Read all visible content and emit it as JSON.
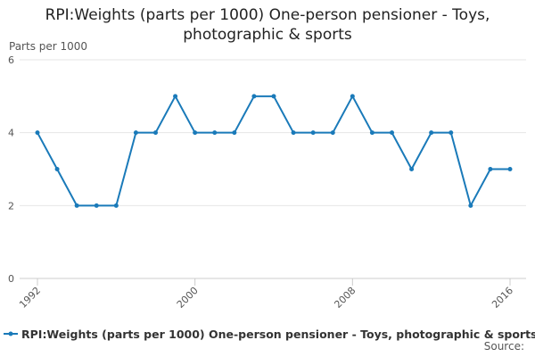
{
  "chart_data": {
    "type": "line",
    "title": "RPI:Weights (parts per 1000) One-person pensioner - Toys, photographic & sports",
    "y_label": "Parts per 1000",
    "source": "Source:",
    "x": [
      1992,
      1993,
      1994,
      1995,
      1996,
      1997,
      1998,
      1999,
      2000,
      2001,
      2002,
      2003,
      2004,
      2005,
      2006,
      2007,
      2008,
      2009,
      2010,
      2011,
      2012,
      2013,
      2014,
      2015,
      2016
    ],
    "series": [
      {
        "name": "RPI:Weights (parts per 1000) One-person pensioner - Toys, photographic & sports",
        "color": "#1a7ab9",
        "values": [
          4,
          3,
          2,
          2,
          2,
          4,
          4,
          5,
          4,
          4,
          4,
          5,
          5,
          4,
          4,
          4,
          5,
          4,
          4,
          3,
          4,
          4,
          2,
          3,
          3
        ]
      }
    ],
    "xlim": [
      1992,
      2016
    ],
    "xticks": [
      1992,
      2000,
      2008,
      2016
    ],
    "ylim": [
      0,
      6
    ],
    "yticks": [
      0,
      2,
      4,
      6
    ],
    "grid": true
  }
}
